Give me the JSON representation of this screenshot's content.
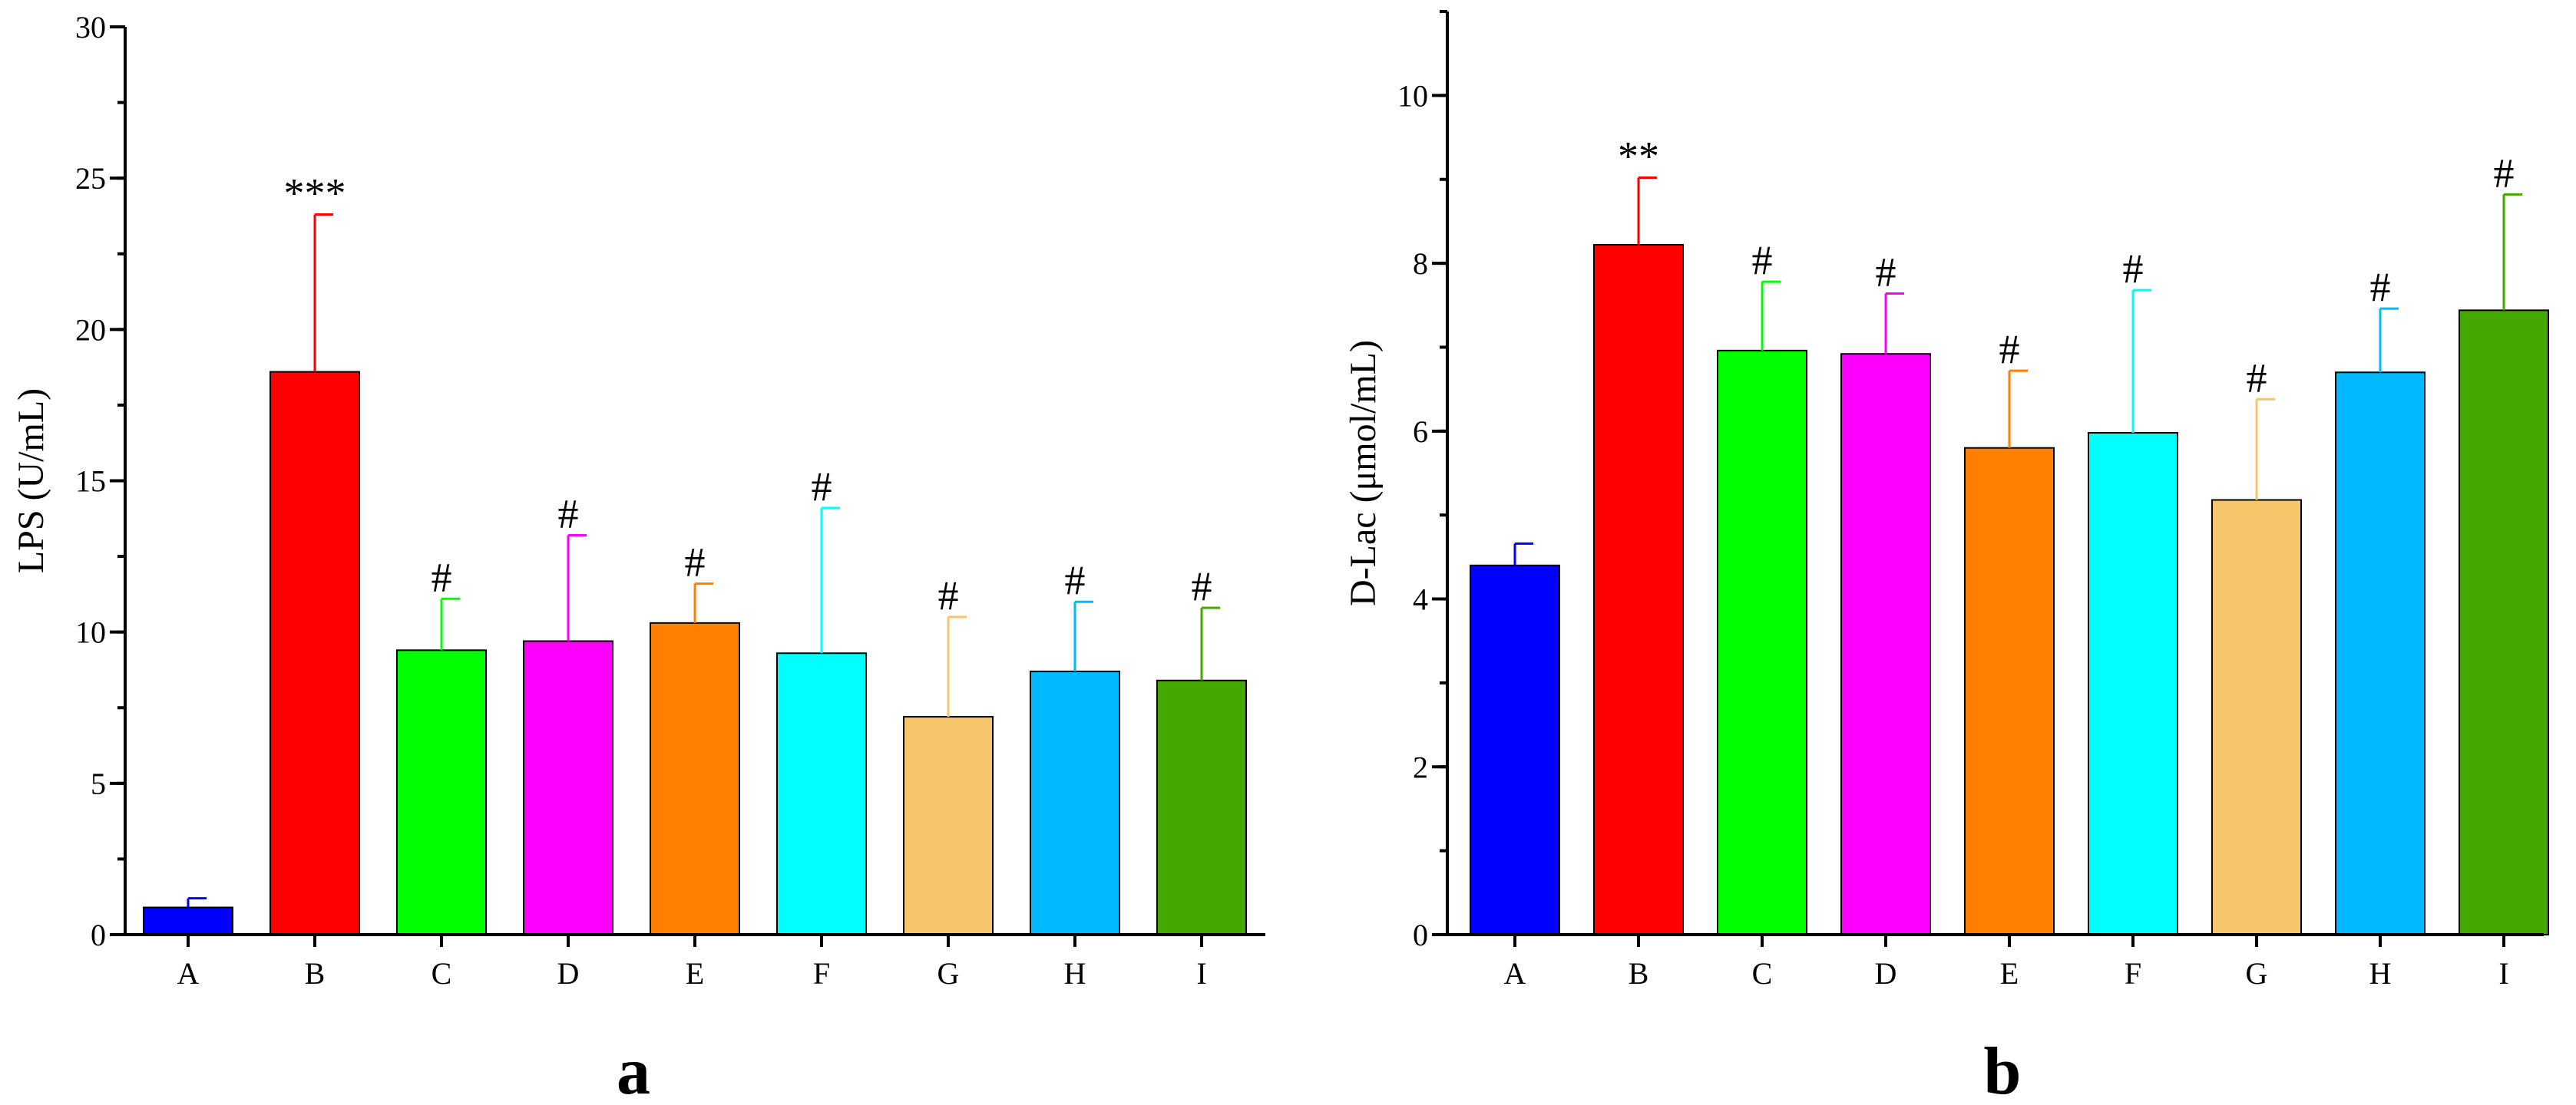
{
  "chart_data": [
    {
      "type": "bar",
      "panel_label": "a",
      "categories": [
        "A",
        "B",
        "C",
        "D",
        "E",
        "F",
        "G",
        "H",
        "I"
      ],
      "values": [
        0.9,
        18.6,
        9.4,
        9.7,
        10.3,
        9.3,
        7.2,
        8.7,
        8.4
      ],
      "errors": [
        0.3,
        5.2,
        1.7,
        3.5,
        1.3,
        4.8,
        3.3,
        2.3,
        2.4
      ],
      "significance": [
        "",
        "***",
        "#",
        "#",
        "#",
        "#",
        "#",
        "#",
        "#"
      ],
      "colors": [
        "#0000ff",
        "#ff0000",
        "#00ff00",
        "#ff00ff",
        "#ff8000",
        "#00ffff",
        "#f8c66a",
        "#00b9ff",
        "#44a800"
      ],
      "title": "",
      "xlabel": "",
      "ylabel": "LPS (U/mL)",
      "ylim": [
        0,
        30
      ],
      "yticks": [
        0,
        5,
        10,
        15,
        20,
        25,
        30
      ],
      "ytick_labels": [
        "0",
        "5",
        "10",
        "15",
        "20",
        "25",
        "30"
      ],
      "grid": false
    },
    {
      "type": "bar",
      "panel_label": "b",
      "categories": [
        "A",
        "B",
        "C",
        "D",
        "E",
        "F",
        "G",
        "H",
        "I"
      ],
      "values": [
        4.4,
        8.22,
        6.96,
        6.92,
        5.8,
        5.98,
        5.18,
        6.7,
        7.44
      ],
      "errors": [
        0.26,
        0.8,
        0.82,
        0.72,
        0.92,
        1.7,
        1.2,
        0.76,
        1.38
      ],
      "significance": [
        "",
        "**",
        "#",
        "#",
        "#",
        "#",
        "#",
        "#",
        "#"
      ],
      "colors": [
        "#0000ff",
        "#ff0000",
        "#00ff00",
        "#ff00ff",
        "#ff8000",
        "#00ffff",
        "#f8c66a",
        "#00b9ff",
        "#44a800"
      ],
      "title": "",
      "xlabel": "",
      "ylabel": "D-Lac (μmol/mL)",
      "ylim": [
        0,
        11
      ],
      "yticks": [
        0,
        2,
        4,
        6,
        8,
        10
      ],
      "ytick_labels": [
        "0",
        "2",
        "4",
        "6",
        "8",
        "10"
      ],
      "grid": false
    }
  ]
}
